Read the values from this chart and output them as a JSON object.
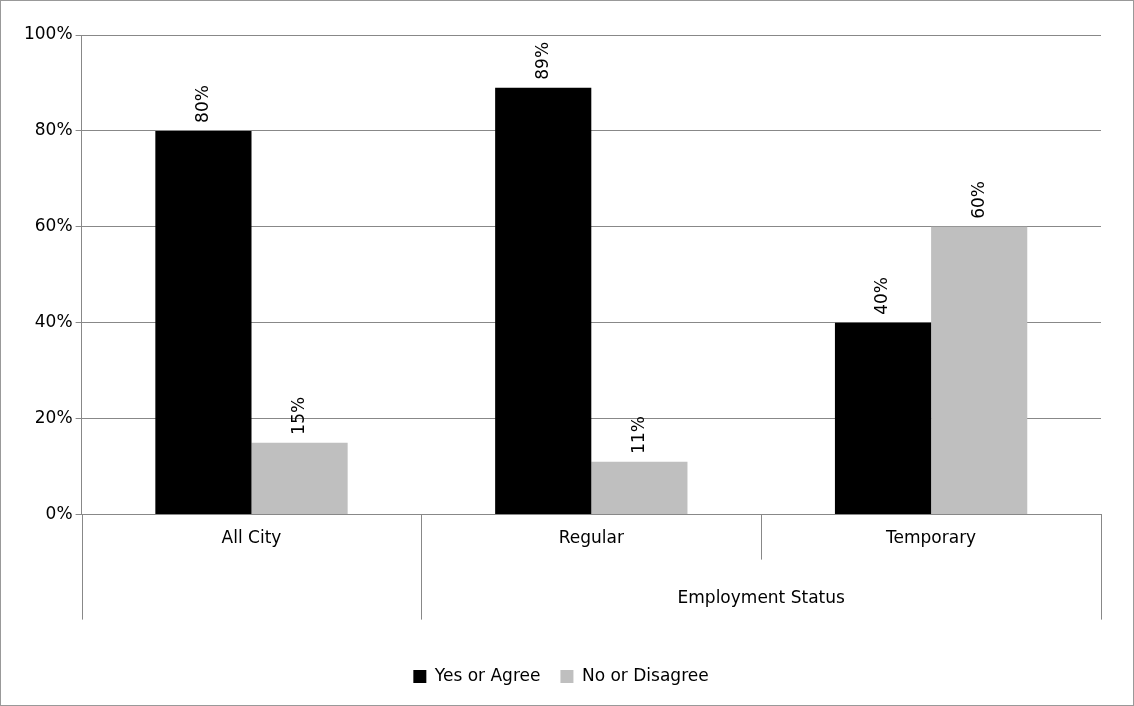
{
  "chart_data": {
    "type": "bar",
    "xlabel": "Employment Status",
    "categories": [
      "All City",
      "Regular",
      "Temporary"
    ],
    "series": [
      {
        "name": "Yes or Agree",
        "color": "#000000",
        "values": [
          80,
          89,
          40
        ]
      },
      {
        "name": "No or Disagree",
        "color": "#bfbfbf",
        "values": [
          15,
          11,
          60
        ]
      }
    ],
    "ylim": [
      0,
      100
    ],
    "yticks": [
      {
        "value": 0,
        "label": "0%"
      },
      {
        "value": 20,
        "label": "20%"
      },
      {
        "value": 40,
        "label": "40%"
      },
      {
        "value": 60,
        "label": "60%"
      },
      {
        "value": 80,
        "label": "80%"
      },
      {
        "value": 100,
        "label": "100%"
      }
    ],
    "value_labels": [
      [
        "80%",
        "89%",
        "40%"
      ],
      [
        "15%",
        "11%",
        "60%"
      ]
    ],
    "grid": "y",
    "legend": "bottom"
  }
}
